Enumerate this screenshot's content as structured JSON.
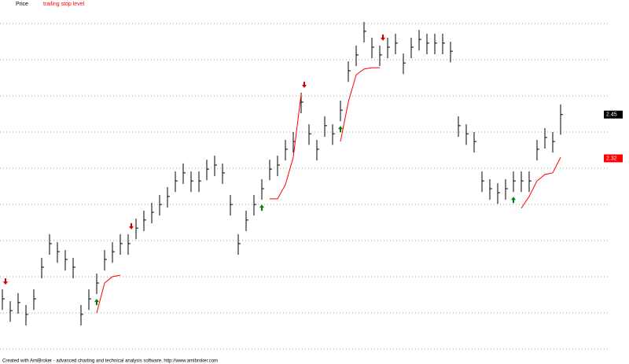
{
  "chart_data": {
    "type": "hlc",
    "legend": [
      {
        "name": "Price",
        "color": "#000000"
      },
      {
        "name": "trailing stop level",
        "color": "#ff0000"
      }
    ],
    "footer": "Created with AmiBroker - advanced charting and technical analysis software. http://www.amibroker.com",
    "ylim": [
      1.74,
      2.79
    ],
    "series": [
      {
        "name": "Price",
        "color": "#000000",
        "high": [
          1.931,
          1.896,
          1.92,
          1.885,
          1.931,
          2.025,
          2.095,
          2.071,
          2.048,
          2.025,
          1.885,
          1.931,
          1.978,
          2.048,
          2.071,
          2.095,
          2.095,
          2.141,
          2.165,
          2.188,
          2.211,
          2.235,
          2.281,
          2.305,
          2.281,
          2.281,
          2.316,
          2.328,
          2.305,
          2.211,
          2.095,
          2.165,
          2.211,
          2.258,
          2.316,
          2.328,
          2.375,
          2.398,
          2.515,
          2.421,
          2.375,
          2.445,
          2.421,
          2.491,
          2.608,
          2.655,
          2.725,
          2.678,
          2.655,
          2.678,
          2.69,
          2.631,
          2.678,
          2.701,
          2.69,
          2.69,
          2.69,
          2.666,
          2.445,
          2.421,
          2.398,
          2.281,
          2.258,
          2.246,
          2.258,
          2.281,
          2.281,
          2.281,
          2.375,
          2.41,
          2.398,
          2.48
        ],
        "low": [
          1.87,
          1.835,
          1.859,
          1.824,
          1.87,
          1.964,
          2.034,
          2.01,
          1.987,
          1.964,
          1.824,
          1.87,
          1.917,
          1.987,
          2.01,
          2.034,
          2.034,
          2.08,
          2.104,
          2.127,
          2.15,
          2.174,
          2.22,
          2.244,
          2.22,
          2.22,
          2.255,
          2.267,
          2.244,
          2.15,
          2.034,
          2.104,
          2.15,
          2.197,
          2.255,
          2.267,
          2.314,
          2.337,
          2.454,
          2.36,
          2.314,
          2.384,
          2.36,
          2.43,
          2.547,
          2.594,
          2.664,
          2.617,
          2.594,
          2.617,
          2.629,
          2.57,
          2.617,
          2.64,
          2.629,
          2.629,
          2.629,
          2.605,
          2.384,
          2.36,
          2.337,
          2.22,
          2.197,
          2.185,
          2.197,
          2.22,
          2.22,
          2.22,
          2.314,
          2.349,
          2.337,
          2.39
        ],
        "close": [
          1.903,
          1.868,
          1.892,
          1.857,
          1.903,
          1.997,
          2.067,
          2.043,
          2.02,
          1.997,
          1.857,
          1.903,
          1.95,
          2.02,
          2.043,
          2.067,
          2.067,
          2.113,
          2.137,
          2.16,
          2.183,
          2.207,
          2.253,
          2.277,
          2.253,
          2.253,
          2.288,
          2.3,
          2.277,
          2.183,
          2.067,
          2.137,
          2.183,
          2.23,
          2.288,
          2.3,
          2.347,
          2.37,
          2.487,
          2.393,
          2.347,
          2.417,
          2.393,
          2.463,
          2.58,
          2.627,
          2.697,
          2.65,
          2.627,
          2.65,
          2.662,
          2.603,
          2.65,
          2.673,
          2.662,
          2.662,
          2.662,
          2.638,
          2.417,
          2.393,
          2.37,
          2.253,
          2.23,
          2.218,
          2.23,
          2.253,
          2.253,
          2.253,
          2.347,
          2.382,
          2.37,
          2.45
        ],
        "last_label": 2.45
      },
      {
        "name": "trailing stop level",
        "color": "#ff0000",
        "values": [
          null,
          null,
          null,
          null,
          null,
          null,
          null,
          null,
          null,
          null,
          null,
          null,
          1.861,
          1.95,
          1.969,
          1.973,
          null,
          null,
          null,
          null,
          null,
          null,
          null,
          null,
          null,
          null,
          null,
          null,
          null,
          null,
          null,
          null,
          null,
          null,
          2.2,
          2.2,
          2.242,
          2.323,
          2.51,
          null,
          null,
          null,
          null,
          2.37,
          2.487,
          2.568,
          2.585,
          2.589,
          2.589,
          null,
          null,
          null,
          null,
          null,
          null,
          null,
          null,
          null,
          null,
          null,
          null,
          null,
          null,
          null,
          null,
          null,
          2.172,
          2.207,
          2.253,
          2.272,
          2.277,
          2.323
        ],
        "last_label": 2.32
      }
    ],
    "buy_signals": [
      12,
      33,
      43,
      65
    ],
    "sell_signals": [
      0,
      16,
      38,
      48
    ]
  }
}
